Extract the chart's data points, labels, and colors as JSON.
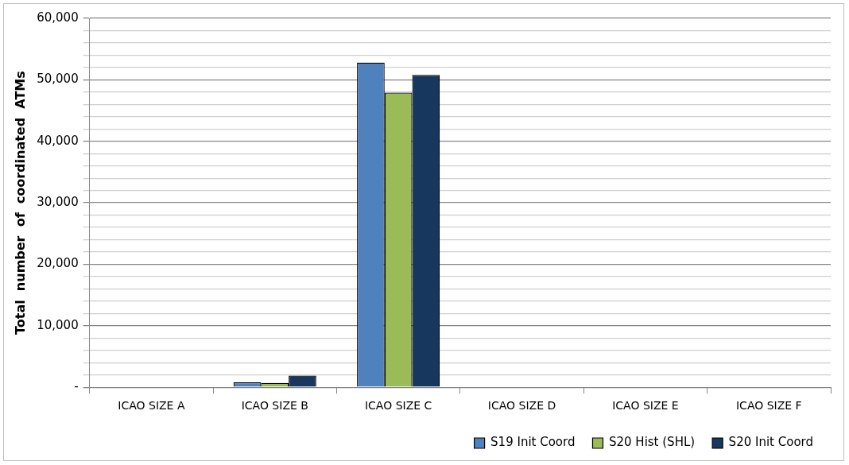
{
  "chart_data": {
    "type": "bar",
    "ylabel": "Total  number  of  coordinated  ATMs",
    "categories": [
      "ICAO SIZE A",
      "ICAO SIZE B",
      "ICAO SIZE C",
      "ICAO SIZE D",
      "ICAO SIZE E",
      "ICAO SIZE F"
    ],
    "series": [
      {
        "name": "S19 Init Coord",
        "color": "#4f81bd",
        "values": [
          0,
          800,
          52800,
          0,
          0,
          0
        ]
      },
      {
        "name": "S20 Hist (SHL)",
        "color": "#9bbb59",
        "values": [
          0,
          700,
          47900,
          0,
          0,
          0
        ]
      },
      {
        "name": "S20 Init Coord",
        "color": "#17375e",
        "values": [
          0,
          1900,
          50800,
          0,
          0,
          0
        ]
      }
    ],
    "ylim": [
      0,
      60000
    ],
    "yticks": [
      {
        "value": 0,
        "label": "-"
      },
      {
        "value": 2000,
        "label": null
      },
      {
        "value": 4000,
        "label": null
      },
      {
        "value": 6000,
        "label": null
      },
      {
        "value": 8000,
        "label": null
      },
      {
        "value": 10000,
        "label": "10,000"
      },
      {
        "value": 12000,
        "label": null
      },
      {
        "value": 14000,
        "label": null
      },
      {
        "value": 16000,
        "label": null
      },
      {
        "value": 18000,
        "label": null
      },
      {
        "value": 20000,
        "label": "20,000"
      },
      {
        "value": 22000,
        "label": null
      },
      {
        "value": 24000,
        "label": null
      },
      {
        "value": 26000,
        "label": null
      },
      {
        "value": 28000,
        "label": null
      },
      {
        "value": 30000,
        "label": "30,000"
      },
      {
        "value": 32000,
        "label": null
      },
      {
        "value": 34000,
        "label": null
      },
      {
        "value": 36000,
        "label": null
      },
      {
        "value": 38000,
        "label": null
      },
      {
        "value": 40000,
        "label": "40,000"
      },
      {
        "value": 42000,
        "label": null
      },
      {
        "value": 44000,
        "label": null
      },
      {
        "value": 46000,
        "label": null
      },
      {
        "value": 48000,
        "label": null
      },
      {
        "value": 50000,
        "label": "50,000"
      },
      {
        "value": 52000,
        "label": null
      },
      {
        "value": 54000,
        "label": null
      },
      {
        "value": 56000,
        "label": null
      },
      {
        "value": 58000,
        "label": null
      },
      {
        "value": 60000,
        "label": "60,000"
      }
    ],
    "grid": "y",
    "legend": "bottom right"
  }
}
